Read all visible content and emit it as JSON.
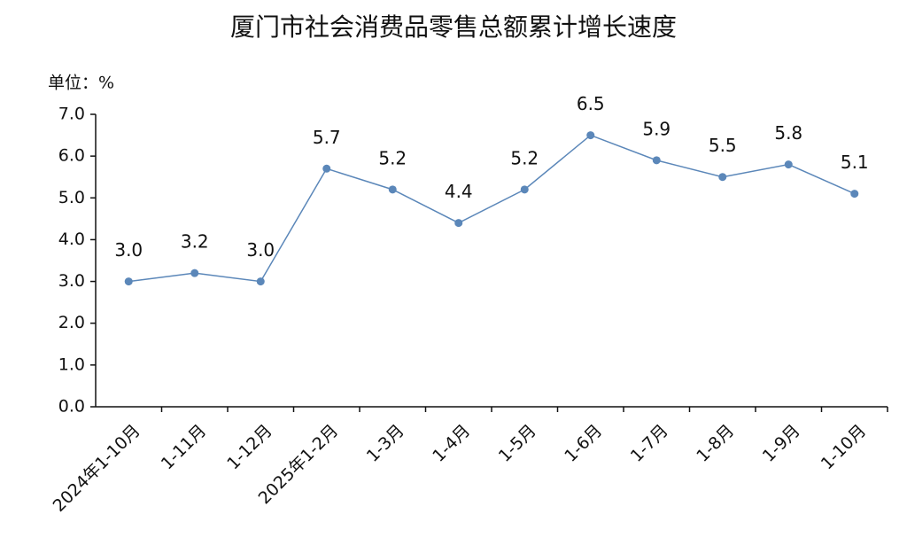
{
  "chart_data": {
    "type": "line",
    "title": "厦门市社会消费品零售总额累计增长速度",
    "unit_label": "单位：%",
    "categories": [
      "2024年1-10月",
      "1-11月",
      "1-12月",
      "2025年1-2月",
      "1-3月",
      "1-4月",
      "1-5月",
      "1-6月",
      "1-7月",
      "1-8月",
      "1-9月",
      "1-10月"
    ],
    "values": [
      3.0,
      3.2,
      3.0,
      5.7,
      5.2,
      4.4,
      5.2,
      6.5,
      5.9,
      5.5,
      5.8,
      5.1
    ],
    "value_labels": [
      "3.0",
      "3.2",
      "3.0",
      "5.7",
      "5.2",
      "4.4",
      "5.2",
      "6.5",
      "5.9",
      "5.5",
      "5.8",
      "5.1"
    ],
    "color": "#5b87b9",
    "ylim": [
      0,
      7
    ],
    "yticks": [
      {
        "value": 0,
        "label": "0.0"
      },
      {
        "value": 1,
        "label": "1.0"
      },
      {
        "value": 2,
        "label": "2.0"
      },
      {
        "value": 3,
        "label": "3.0"
      },
      {
        "value": 4,
        "label": "4.0"
      },
      {
        "value": 5,
        "label": "5.0"
      },
      {
        "value": 6,
        "label": "6.0"
      },
      {
        "value": 7,
        "label": "7.0"
      }
    ],
    "grid": false
  }
}
